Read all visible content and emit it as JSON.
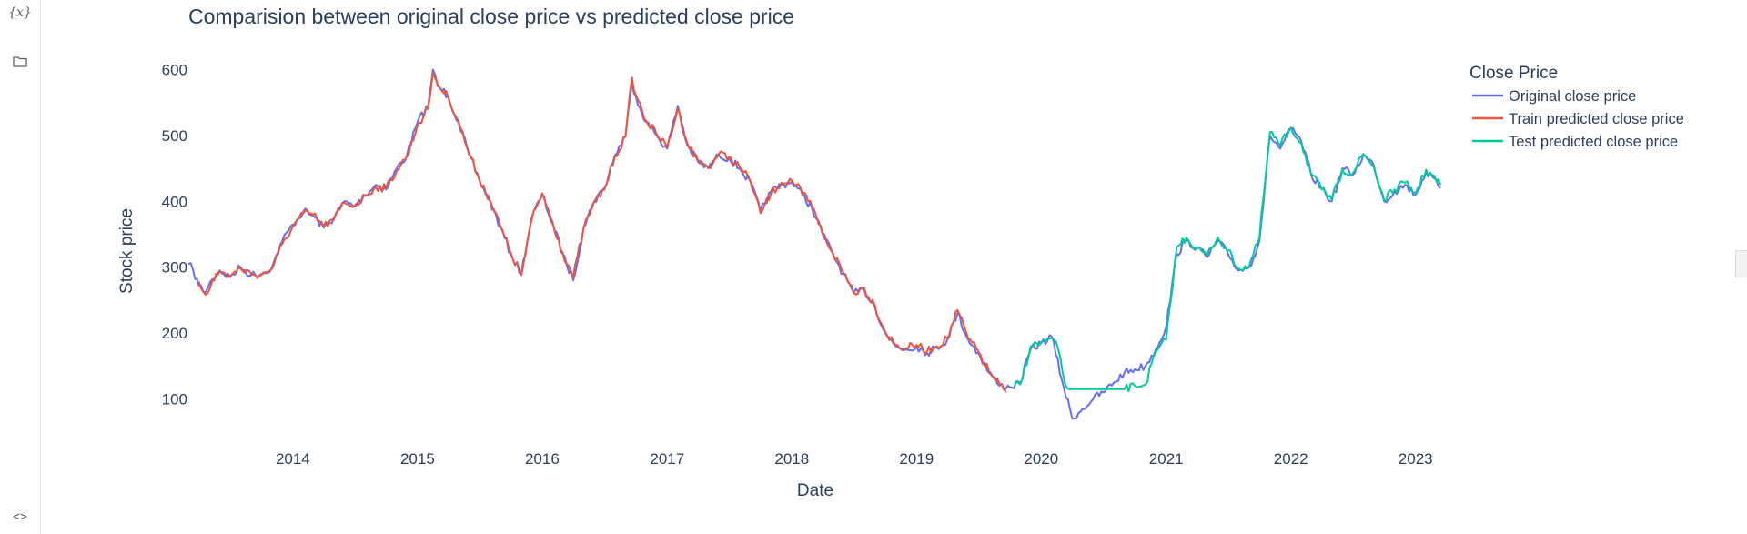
{
  "sidebar": {
    "icons": [
      {
        "name": "variables-icon",
        "glyph": "{x}"
      },
      {
        "name": "folder-icon"
      },
      {
        "name": "code-snippets-icon",
        "glyph": "<>"
      }
    ]
  },
  "chart_data": {
    "type": "line",
    "title": "Comparision between original close price vs predicted close price",
    "xlabel": "Date",
    "ylabel": "Stock price",
    "x_ticks": [
      "2014",
      "2015",
      "2016",
      "2017",
      "2018",
      "2019",
      "2020",
      "2021",
      "2022",
      "2023"
    ],
    "y_ticks": [
      100,
      200,
      300,
      400,
      500,
      600
    ],
    "xlim": [
      "2013-03-01",
      "2023-03-20"
    ],
    "ylim": [
      40,
      620
    ],
    "grid": false,
    "legend": {
      "title": "Close Price",
      "position": "right"
    },
    "series": [
      {
        "name": "Original close price",
        "color": "#636efa",
        "points": [
          [
            "2013-03-01",
            305
          ],
          [
            "2013-03-15",
            295
          ],
          [
            "2013-04-01",
            272
          ],
          [
            "2013-04-20",
            262
          ],
          [
            "2013-05-10",
            282
          ],
          [
            "2013-06-01",
            295
          ],
          [
            "2013-07-01",
            285
          ],
          [
            "2013-08-01",
            300
          ],
          [
            "2013-09-01",
            288
          ],
          [
            "2013-10-01",
            290
          ],
          [
            "2013-11-01",
            300
          ],
          [
            "2013-12-01",
            340
          ],
          [
            "2014-01-01",
            365
          ],
          [
            "2014-02-01",
            385
          ],
          [
            "2014-03-01",
            378
          ],
          [
            "2014-04-01",
            360
          ],
          [
            "2014-05-01",
            375
          ],
          [
            "2014-06-01",
            400
          ],
          [
            "2014-07-01",
            392
          ],
          [
            "2014-08-01",
            410
          ],
          [
            "2014-09-01",
            425
          ],
          [
            "2014-10-01",
            418
          ],
          [
            "2014-11-01",
            450
          ],
          [
            "2014-12-01",
            470
          ],
          [
            "2015-01-01",
            520
          ],
          [
            "2015-02-01",
            545
          ],
          [
            "2015-02-15",
            600
          ],
          [
            "2015-03-01",
            575
          ],
          [
            "2015-04-01",
            560
          ],
          [
            "2015-05-01",
            520
          ],
          [
            "2015-06-01",
            470
          ],
          [
            "2015-07-01",
            432
          ],
          [
            "2015-08-01",
            400
          ],
          [
            "2015-09-01",
            360
          ],
          [
            "2015-10-01",
            320
          ],
          [
            "2015-11-01",
            290
          ],
          [
            "2015-12-01",
            375
          ],
          [
            "2016-01-01",
            410
          ],
          [
            "2016-02-01",
            365
          ],
          [
            "2016-03-01",
            320
          ],
          [
            "2016-04-01",
            280
          ],
          [
            "2016-05-01",
            360
          ],
          [
            "2016-06-01",
            400
          ],
          [
            "2016-07-01",
            420
          ],
          [
            "2016-08-01",
            470
          ],
          [
            "2016-09-01",
            500
          ],
          [
            "2016-09-20",
            580
          ],
          [
            "2016-10-01",
            560
          ],
          [
            "2016-11-01",
            520
          ],
          [
            "2016-12-01",
            500
          ],
          [
            "2017-01-01",
            480
          ],
          [
            "2017-02-01",
            545
          ],
          [
            "2017-03-01",
            485
          ],
          [
            "2017-04-01",
            460
          ],
          [
            "2017-05-01",
            450
          ],
          [
            "2017-06-01",
            470
          ],
          [
            "2017-07-01",
            465
          ],
          [
            "2017-08-01",
            450
          ],
          [
            "2017-09-01",
            430
          ],
          [
            "2017-10-01",
            385
          ],
          [
            "2017-11-01",
            415
          ],
          [
            "2017-12-01",
            425
          ],
          [
            "2018-01-01",
            430
          ],
          [
            "2018-02-01",
            410
          ],
          [
            "2018-03-01",
            390
          ],
          [
            "2018-04-01",
            350
          ],
          [
            "2018-05-01",
            320
          ],
          [
            "2018-06-01",
            290
          ],
          [
            "2018-07-01",
            260
          ],
          [
            "2018-08-01",
            265
          ],
          [
            "2018-09-01",
            240
          ],
          [
            "2018-10-01",
            200
          ],
          [
            "2018-11-01",
            180
          ],
          [
            "2018-12-01",
            175
          ],
          [
            "2019-01-01",
            180
          ],
          [
            "2019-02-01",
            170
          ],
          [
            "2019-03-01",
            178
          ],
          [
            "2019-04-01",
            190
          ],
          [
            "2019-05-01",
            230
          ],
          [
            "2019-06-01",
            190
          ],
          [
            "2019-07-01",
            170
          ],
          [
            "2019-08-01",
            140
          ],
          [
            "2019-09-01",
            120
          ],
          [
            "2019-10-01",
            118
          ],
          [
            "2019-11-01",
            125
          ],
          [
            "2019-12-01",
            175
          ],
          [
            "2020-01-01",
            185
          ],
          [
            "2020-02-01",
            195
          ],
          [
            "2020-03-01",
            130
          ],
          [
            "2020-04-01",
            70
          ],
          [
            "2020-05-01",
            85
          ],
          [
            "2020-06-01",
            100
          ],
          [
            "2020-07-01",
            110
          ],
          [
            "2020-08-01",
            125
          ],
          [
            "2020-09-01",
            140
          ],
          [
            "2020-10-01",
            145
          ],
          [
            "2020-11-01",
            150
          ],
          [
            "2020-12-01",
            175
          ],
          [
            "2021-01-01",
            210
          ],
          [
            "2021-02-01",
            320
          ],
          [
            "2021-03-01",
            340
          ],
          [
            "2021-04-01",
            330
          ],
          [
            "2021-05-01",
            315
          ],
          [
            "2021-06-01",
            340
          ],
          [
            "2021-07-01",
            320
          ],
          [
            "2021-08-01",
            295
          ],
          [
            "2021-09-01",
            300
          ],
          [
            "2021-10-01",
            340
          ],
          [
            "2021-11-01",
            500
          ],
          [
            "2021-12-01",
            480
          ],
          [
            "2022-01-01",
            510
          ],
          [
            "2022-02-01",
            490
          ],
          [
            "2022-03-01",
            440
          ],
          [
            "2022-04-01",
            420
          ],
          [
            "2022-05-01",
            400
          ],
          [
            "2022-06-01",
            450
          ],
          [
            "2022-07-01",
            440
          ],
          [
            "2022-08-01",
            470
          ],
          [
            "2022-09-01",
            455
          ],
          [
            "2022-10-01",
            400
          ],
          [
            "2022-11-01",
            415
          ],
          [
            "2022-12-01",
            425
          ],
          [
            "2023-01-01",
            410
          ],
          [
            "2023-02-01",
            445
          ],
          [
            "2023-03-15",
            420
          ]
        ]
      },
      {
        "name": "Train predicted close price",
        "color": "#ef553b",
        "points": [
          [
            "2013-04-01",
            278
          ],
          [
            "2013-04-20",
            258
          ],
          [
            "2013-05-10",
            280
          ],
          [
            "2013-06-01",
            293
          ],
          [
            "2013-07-01",
            287
          ],
          [
            "2013-08-01",
            298
          ],
          [
            "2013-09-01",
            290
          ],
          [
            "2013-10-01",
            288
          ],
          [
            "2013-11-01",
            298
          ],
          [
            "2013-12-01",
            335
          ],
          [
            "2014-01-01",
            362
          ],
          [
            "2014-02-01",
            382
          ],
          [
            "2014-03-01",
            380
          ],
          [
            "2014-04-01",
            362
          ],
          [
            "2014-05-01",
            372
          ],
          [
            "2014-06-01",
            398
          ],
          [
            "2014-07-01",
            394
          ],
          [
            "2014-08-01",
            408
          ],
          [
            "2014-09-01",
            422
          ],
          [
            "2014-10-01",
            420
          ],
          [
            "2014-11-01",
            447
          ],
          [
            "2014-12-01",
            468
          ],
          [
            "2015-01-01",
            515
          ],
          [
            "2015-02-01",
            540
          ],
          [
            "2015-02-15",
            595
          ],
          [
            "2015-03-01",
            578
          ],
          [
            "2015-04-01",
            558
          ],
          [
            "2015-05-01",
            522
          ],
          [
            "2015-06-01",
            472
          ],
          [
            "2015-07-01",
            435
          ],
          [
            "2015-08-01",
            402
          ],
          [
            "2015-09-01",
            362
          ],
          [
            "2015-10-01",
            322
          ],
          [
            "2015-11-01",
            288
          ],
          [
            "2015-12-01",
            372
          ],
          [
            "2016-01-01",
            412
          ],
          [
            "2016-02-01",
            368
          ],
          [
            "2016-03-01",
            322
          ],
          [
            "2016-04-01",
            285
          ],
          [
            "2016-05-01",
            358
          ],
          [
            "2016-06-01",
            398
          ],
          [
            "2016-07-01",
            418
          ],
          [
            "2016-08-01",
            468
          ],
          [
            "2016-09-01",
            498
          ],
          [
            "2016-09-20",
            588
          ],
          [
            "2016-10-01",
            562
          ],
          [
            "2016-11-01",
            522
          ],
          [
            "2016-12-01",
            502
          ],
          [
            "2017-01-01",
            482
          ],
          [
            "2017-02-01",
            540
          ],
          [
            "2017-03-01",
            488
          ],
          [
            "2017-04-01",
            462
          ],
          [
            "2017-05-01",
            452
          ],
          [
            "2017-06-01",
            472
          ],
          [
            "2017-07-01",
            467
          ],
          [
            "2017-08-01",
            452
          ],
          [
            "2017-09-01",
            432
          ],
          [
            "2017-10-01",
            382
          ],
          [
            "2017-11-01",
            412
          ],
          [
            "2017-12-01",
            428
          ],
          [
            "2018-01-01",
            432
          ],
          [
            "2018-02-01",
            412
          ],
          [
            "2018-03-01",
            392
          ],
          [
            "2018-04-01",
            352
          ],
          [
            "2018-05-01",
            322
          ],
          [
            "2018-06-01",
            292
          ],
          [
            "2018-07-01",
            262
          ],
          [
            "2018-08-01",
            268
          ],
          [
            "2018-09-01",
            242
          ],
          [
            "2018-10-01",
            202
          ],
          [
            "2018-11-01",
            182
          ],
          [
            "2018-12-01",
            177
          ],
          [
            "2019-01-01",
            182
          ],
          [
            "2019-02-01",
            172
          ],
          [
            "2019-03-01",
            180
          ],
          [
            "2019-04-01",
            192
          ],
          [
            "2019-05-01",
            235
          ],
          [
            "2019-06-01",
            192
          ],
          [
            "2019-07-01",
            172
          ],
          [
            "2019-08-01",
            142
          ],
          [
            "2019-09-01",
            122
          ],
          [
            "2019-09-20",
            110
          ]
        ]
      },
      {
        "name": "Test predicted close price",
        "color": "#00cc96",
        "points": [
          [
            "2019-10-15",
            120
          ],
          [
            "2019-11-01",
            122
          ],
          [
            "2019-12-01",
            180
          ],
          [
            "2020-01-01",
            185
          ],
          [
            "2020-02-01",
            192
          ],
          [
            "2020-02-20",
            175
          ],
          [
            "2020-03-10",
            125
          ],
          [
            "2020-03-20",
            115
          ],
          [
            "2020-06-01",
            115
          ],
          [
            "2020-09-01",
            115
          ],
          [
            "2020-10-01",
            120
          ],
          [
            "2020-11-01",
            122
          ],
          [
            "2020-12-01",
            170
          ],
          [
            "2021-01-01",
            190
          ],
          [
            "2021-02-01",
            330
          ],
          [
            "2021-03-01",
            345
          ],
          [
            "2021-04-01",
            328
          ],
          [
            "2021-05-01",
            318
          ],
          [
            "2021-06-01",
            345
          ],
          [
            "2021-07-01",
            325
          ],
          [
            "2021-08-01",
            298
          ],
          [
            "2021-09-01",
            302
          ],
          [
            "2021-10-01",
            345
          ],
          [
            "2021-11-01",
            505
          ],
          [
            "2021-12-01",
            485
          ],
          [
            "2022-01-01",
            512
          ],
          [
            "2022-02-01",
            488
          ],
          [
            "2022-03-01",
            442
          ],
          [
            "2022-04-01",
            418
          ],
          [
            "2022-05-01",
            402
          ],
          [
            "2022-06-01",
            448
          ],
          [
            "2022-07-01",
            442
          ],
          [
            "2022-08-01",
            472
          ],
          [
            "2022-09-01",
            452
          ],
          [
            "2022-10-01",
            402
          ],
          [
            "2022-11-01",
            418
          ],
          [
            "2022-12-01",
            428
          ],
          [
            "2023-01-01",
            412
          ],
          [
            "2023-02-01",
            448
          ],
          [
            "2023-03-15",
            425
          ]
        ]
      }
    ]
  }
}
